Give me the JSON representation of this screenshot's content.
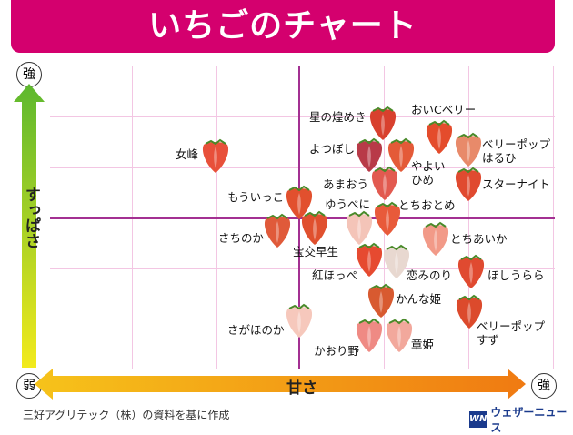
{
  "title": "いちごのチャート",
  "axes": {
    "y_label": "すっぱさ",
    "y_high": "強",
    "y_low": "弱",
    "x_label": "甘さ",
    "x_high": "強"
  },
  "varieties": [
    {
      "name": "女峰",
      "color": "#e8503a"
    },
    {
      "name": "星の煌めき",
      "color": "#d8402e"
    },
    {
      "name": "おいCベリー",
      "color": "#e44c2c"
    },
    {
      "name": "よつぼし",
      "color": "#b83a48"
    },
    {
      "name": "やよいひめ",
      "color": "#e45a38"
    },
    {
      "name": "ベリーポップはるひ",
      "color": "#e88a6a"
    },
    {
      "name": "あまおう",
      "color": "#e25a50"
    },
    {
      "name": "スターナイト",
      "color": "#e04a30"
    },
    {
      "name": "もういっこ",
      "color": "#e2502e"
    },
    {
      "name": "ゆうべに",
      "color": "#f4c4b8"
    },
    {
      "name": "とちおとめ",
      "color": "#e85a3a"
    },
    {
      "name": "さちのか",
      "color": "#e05a3a"
    },
    {
      "name": "宝交早生",
      "color": "#e0502e"
    },
    {
      "name": "とちあいか",
      "color": "#f29a88"
    },
    {
      "name": "紅ほっぺ",
      "color": "#e64a30"
    },
    {
      "name": "恋みのり",
      "color": "#e8d8d0"
    },
    {
      "name": "ほしうらら",
      "color": "#e04a30"
    },
    {
      "name": "かんな姫",
      "color": "#d85a30"
    },
    {
      "name": "ベリーポップすず",
      "color": "#dc4a2c"
    },
    {
      "name": "さがほのか",
      "color": "#f6c8bc"
    },
    {
      "name": "かおり野",
      "color": "#ef8a84"
    },
    {
      "name": "章姫",
      "color": "#f2a89c"
    }
  ],
  "footer": {
    "source": "三好アグリテック（株）の資料を基に作成",
    "logo_mark": "WN",
    "logo_text": "ウェザーニュース"
  }
}
